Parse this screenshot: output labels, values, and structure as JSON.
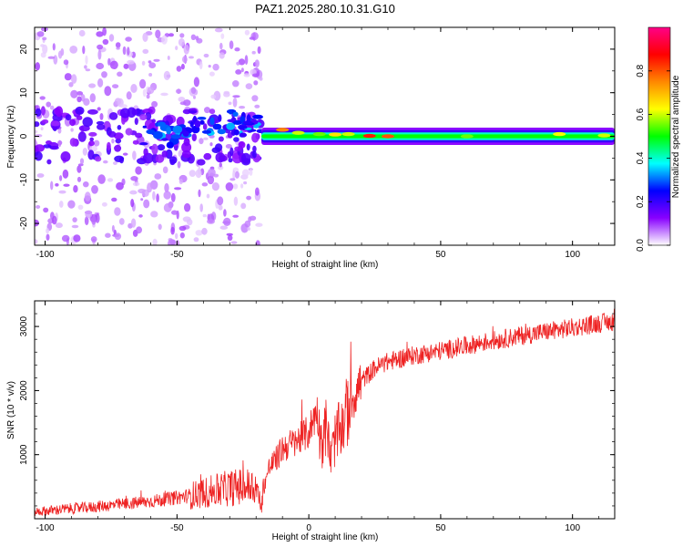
{
  "title": "PAZ1.2025.280.10.31.G10",
  "chart_data": [
    {
      "type": "heatmap",
      "name": "spectrogram",
      "xlabel": "Height of straight line (km)",
      "ylabel": "Frequency (Hz)",
      "xlim": [
        -104,
        116
      ],
      "ylim": [
        -25,
        25
      ],
      "xticks": [
        -100,
        -50,
        0,
        50,
        100
      ],
      "xtick_labels": [
        "-100",
        "-50",
        "0",
        "50",
        "100"
      ],
      "yticks": [
        -20,
        -10,
        0,
        10,
        20
      ],
      "ytick_labels": [
        "-20",
        "-10",
        "0",
        "10",
        "20"
      ],
      "colorbar": {
        "label": "Normalized spectral amplitude",
        "range": [
          0,
          1
        ],
        "ticks": [
          0.0,
          0.2,
          0.4,
          0.6,
          0.8
        ],
        "tick_labels": [
          "0.0",
          "0.2",
          "0.4",
          "0.6",
          "0.8"
        ],
        "colors": [
          "#ffffff",
          "#8800ff",
          "#0000ff",
          "#00ffff",
          "#00ff00",
          "#ffff00",
          "#ff8800",
          "#ff0000",
          "#ff0088"
        ]
      },
      "features": [
        {
          "region": "noisy",
          "x_range": [
            -104,
            -18
          ],
          "frequency_spread": [
            -25,
            25
          ],
          "amplitude": "low, scattered"
        },
        {
          "region": "transition",
          "x_range": [
            -50,
            -18
          ],
          "center_frequency": 3,
          "amplitude": "medium"
        },
        {
          "region": "carrier",
          "x_range": [
            -18,
            116
          ],
          "center_frequency": 0,
          "amplitude": "high"
        }
      ]
    },
    {
      "type": "line",
      "name": "snr",
      "xlabel": "Height of straight line (km)",
      "ylabel": "SNR (10 * v/v)",
      "xlim": [
        -104,
        116
      ],
      "ylim": [
        0,
        3400
      ],
      "xticks": [
        -100,
        -50,
        0,
        50,
        100
      ],
      "xtick_labels": [
        "-100",
        "-50",
        "0",
        "50",
        "100"
      ],
      "yticks": [
        1000,
        2000,
        3000
      ],
      "ytick_labels": [
        "1000",
        "2000",
        "3000"
      ],
      "color": "#ee2222",
      "series": [
        {
          "name": "SNR",
          "x": [
            -104,
            -100,
            -95,
            -90,
            -85,
            -80,
            -75,
            -70,
            -65,
            -60,
            -55,
            -50,
            -45,
            -40,
            -35,
            -30,
            -25,
            -20,
            -18,
            -17,
            -15,
            -12,
            -10,
            -5,
            0,
            3,
            5,
            7,
            8,
            10,
            12,
            14,
            15,
            17,
            20,
            25,
            30,
            35,
            40,
            50,
            60,
            70,
            80,
            90,
            100,
            110,
            116
          ],
          "values": [
            110,
            120,
            140,
            160,
            170,
            190,
            210,
            230,
            250,
            270,
            300,
            330,
            360,
            400,
            440,
            480,
            500,
            500,
            180,
            520,
            800,
            950,
            1100,
            1200,
            1350,
            1700,
            1200,
            1500,
            900,
            1250,
            1400,
            1600,
            1750,
            1900,
            2150,
            2350,
            2450,
            2500,
            2550,
            2620,
            2700,
            2780,
            2850,
            2920,
            2980,
            3050,
            3080
          ],
          "noise_amplitude": "approximately +/-150, spikes up to +/-700 near x=-40 to -20 and x=5 to 15"
        }
      ]
    }
  ]
}
